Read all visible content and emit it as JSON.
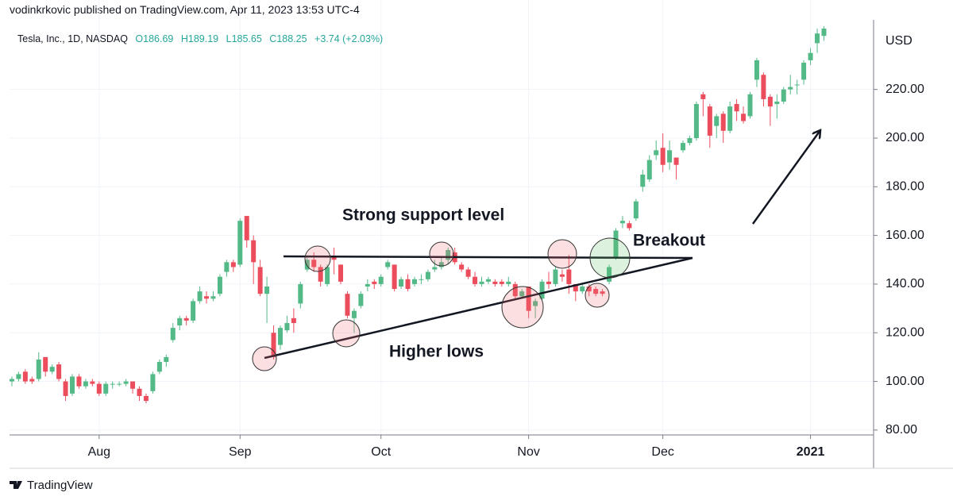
{
  "header": "vodinkrkovic published on TradingView.com, Apr 11, 2023 13:53 UTC-4",
  "footer": "TradingView",
  "chart_data": {
    "type": "candlestick",
    "symbol": "Tesla, Inc., 1D, NASDAQ",
    "ohlc_legend": [
      "O186.69",
      "H189.19",
      "L185.65",
      "C188.25",
      "+3.74 (+2.03%)"
    ],
    "currency": "USD",
    "annotations": [
      "Strong support level",
      "Higher lows",
      "Breakout"
    ],
    "up_color": "#53b987",
    "down_color": "#eb4d5c",
    "grid": true,
    "xlim": [
      -0.35,
      128.4
    ],
    "xticks": [
      {
        "value": 13,
        "label": "Aug"
      },
      {
        "value": 34,
        "label": "Sep"
      },
      {
        "value": 55,
        "label": "Oct"
      },
      {
        "value": 77,
        "label": "Nov"
      },
      {
        "value": 97,
        "label": "Dec"
      },
      {
        "value": 119,
        "label": "2021"
      }
    ],
    "ylim": [
      78,
      248.6
    ],
    "yticks": [
      {
        "value": 80,
        "label": "80.00"
      },
      {
        "value": 100,
        "label": "100.00"
      },
      {
        "value": 120,
        "label": "120.00"
      },
      {
        "value": 140,
        "label": "140.00"
      },
      {
        "value": 160,
        "label": "160.00"
      },
      {
        "value": 180,
        "label": "180.00"
      },
      {
        "value": 200,
        "label": "200.00"
      },
      {
        "value": 220,
        "label": "220.00"
      }
    ],
    "open": [
      100,
      101,
      104,
      101,
      101,
      110,
      104,
      107,
      100,
      95,
      102,
      98,
      100,
      99,
      95,
      99,
      99,
      99,
      100,
      97,
      94,
      96,
      104,
      108,
      117,
      123,
      126,
      125,
      133,
      135,
      134,
      136,
      145,
      149,
      148,
      168,
      158,
      147,
      136,
      120,
      115,
      121,
      126,
      132,
      146,
      150,
      147,
      140,
      151,
      148,
      136,
      126,
      131,
      139,
      141,
      140,
      147,
      148,
      139,
      142,
      140,
      142,
      142,
      146,
      147,
      150,
      153,
      148,
      146,
      143,
      140,
      141,
      141,
      141,
      140,
      140,
      135,
      139,
      131,
      134,
      141,
      140,
      144,
      146,
      140,
      137,
      139,
      138,
      137,
      141,
      151,
      165,
      165,
      167,
      180,
      183,
      193,
      196,
      190,
      192,
      195,
      198,
      200,
      218,
      213,
      205,
      210,
      203,
      214,
      210,
      209,
      224,
      226,
      217,
      214,
      215,
      220,
      222,
      224,
      232,
      239,
      242
    ],
    "high": [
      102,
      104,
      105,
      102,
      112,
      110,
      107,
      108,
      101,
      103,
      103,
      101,
      101,
      100,
      100,
      100,
      100,
      101,
      100,
      98,
      95,
      104,
      109,
      111,
      124,
      127,
      127,
      134,
      139,
      137,
      137,
      144,
      150,
      150,
      167,
      168,
      160,
      150,
      143,
      123,
      123,
      127,
      130,
      141,
      151,
      153,
      148,
      148,
      155,
      148,
      137,
      130,
      137,
      142,
      142,
      144,
      150,
      148,
      143,
      144,
      143,
      144,
      146,
      150,
      151,
      155,
      155,
      149,
      147,
      145,
      143,
      143,
      142,
      142,
      143,
      141,
      138,
      139,
      134,
      142,
      145,
      147,
      146,
      152,
      140,
      140,
      140,
      139,
      138,
      148,
      163,
      168,
      166,
      175,
      187,
      193,
      199,
      202,
      199,
      192,
      199,
      201,
      215,
      219,
      214,
      210,
      211,
      215,
      216,
      213,
      219,
      233,
      227,
      218,
      218,
      221,
      226,
      224,
      232,
      237,
      245,
      246
    ],
    "low": [
      98,
      100,
      99,
      99,
      100,
      102,
      103,
      100,
      92,
      94,
      97,
      97,
      98,
      94,
      94,
      97,
      98,
      98,
      95,
      92,
      91,
      95,
      103,
      106,
      116,
      121,
      123,
      124,
      132,
      132,
      133,
      135,
      143,
      145,
      147,
      155,
      140,
      135,
      124,
      109,
      113,
      120,
      120,
      130,
      145,
      145,
      139,
      139,
      144,
      140,
      126,
      120,
      130,
      137,
      138,
      139,
      146,
      137,
      138,
      137,
      139,
      140,
      141,
      145,
      146,
      148,
      148,
      145,
      142,
      139,
      139,
      140,
      139,
      139,
      139,
      134,
      134,
      126,
      126,
      133,
      138,
      139,
      141,
      136,
      133,
      136,
      135,
      135,
      135,
      140,
      150,
      163,
      162,
      166,
      178,
      182,
      191,
      186,
      187,
      183,
      194,
      197,
      199,
      209,
      196,
      200,
      198,
      202,
      207,
      206,
      208,
      221,
      213,
      205,
      208,
      214,
      218,
      218,
      222,
      230,
      235,
      240
    ],
    "close": [
      101,
      103,
      100,
      100,
      109,
      104,
      106,
      101,
      94,
      102,
      98,
      100,
      99,
      95,
      99,
      99,
      99,
      100,
      97,
      94,
      92,
      103,
      108,
      110,
      122,
      126,
      125,
      133,
      137,
      134,
      135,
      143,
      149,
      147,
      166,
      158,
      149,
      136,
      139,
      110,
      122,
      124,
      124,
      140,
      150,
      147,
      141,
      147,
      150,
      141,
      127,
      129,
      136,
      140,
      140,
      143,
      149,
      138,
      142,
      138,
      142,
      142,
      145,
      147,
      149,
      154,
      149,
      146,
      143,
      140,
      141,
      142,
      140,
      140,
      141,
      135,
      137,
      129,
      133,
      141,
      140,
      146,
      143,
      140,
      137,
      139,
      137,
      136,
      136,
      147,
      162,
      166,
      163,
      174,
      185,
      191,
      195,
      189,
      195,
      189,
      198,
      200,
      214,
      216,
      201,
      209,
      203,
      213,
      211,
      207,
      218,
      232,
      216,
      213,
      215,
      220,
      221,
      222,
      231,
      235,
      243,
      245
    ]
  }
}
